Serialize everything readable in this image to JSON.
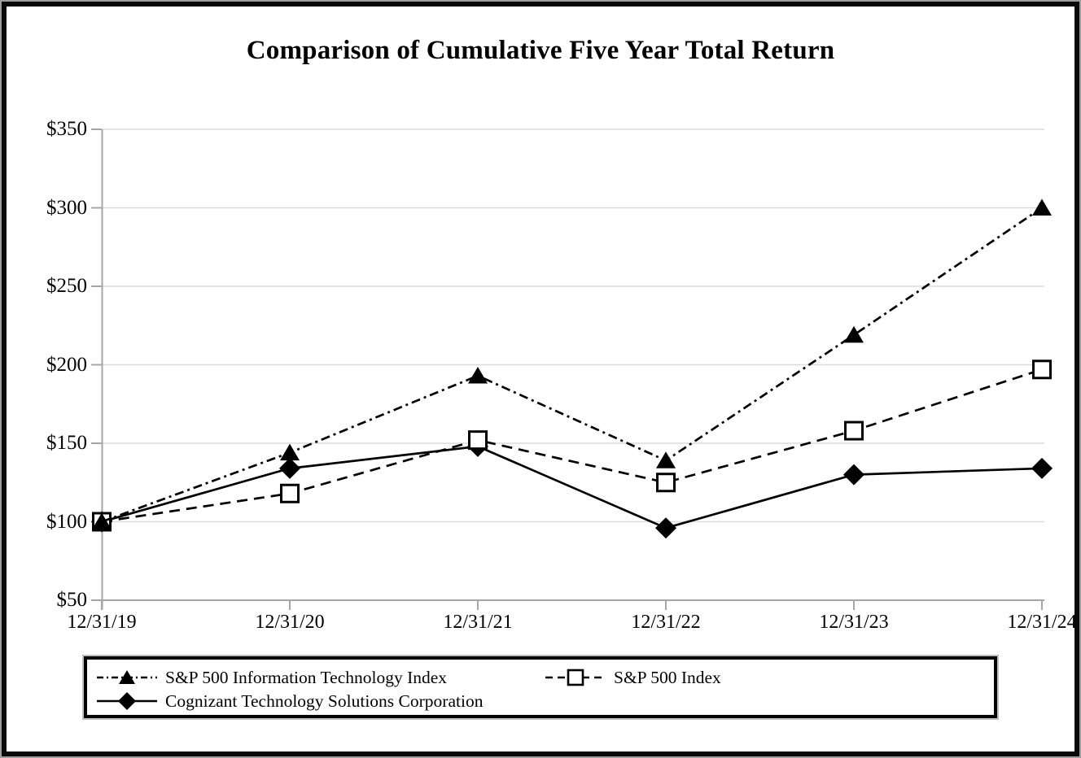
{
  "chart_data": {
    "type": "line",
    "title": "Comparison of Cumulative Five Year Total Return",
    "categories": [
      "12/31/19",
      "12/31/20",
      "12/31/21",
      "12/31/22",
      "12/31/23",
      "12/31/24"
    ],
    "series": [
      {
        "name": "S&P 500 Information Technology Index",
        "marker": "triangle-filled",
        "line_style": "dash-dot",
        "values": [
          100,
          144,
          193,
          139,
          219,
          300
        ]
      },
      {
        "name": "S&P 500 Index",
        "marker": "square-open",
        "line_style": "dashed",
        "values": [
          100,
          118,
          152,
          125,
          158,
          197
        ]
      },
      {
        "name": "Cognizant Technology Solutions Corporation",
        "marker": "diamond-filled",
        "line_style": "solid",
        "values": [
          100,
          134,
          148,
          96,
          130,
          134
        ]
      }
    ],
    "y_axis": {
      "ticks": [
        {
          "value": 350,
          "label": "$350"
        },
        {
          "value": 300,
          "label": "$300"
        },
        {
          "value": 250,
          "label": "$250"
        },
        {
          "value": 200,
          "label": "$200"
        },
        {
          "value": 150,
          "label": "$150"
        },
        {
          "value": 100,
          "label": "$100"
        },
        {
          "value": 50,
          "label": "$50"
        }
      ]
    },
    "ylim": [
      50,
      350
    ],
    "xlabel": "",
    "ylabel": "",
    "grid": "horizontal",
    "legend_position": "bottom-boxed",
    "colors": {
      "series": "#000000",
      "axis": "#a6a6a6",
      "gridline": "#dcdcdc",
      "background": "#ffffff",
      "frame": "#0a0a0a"
    }
  }
}
